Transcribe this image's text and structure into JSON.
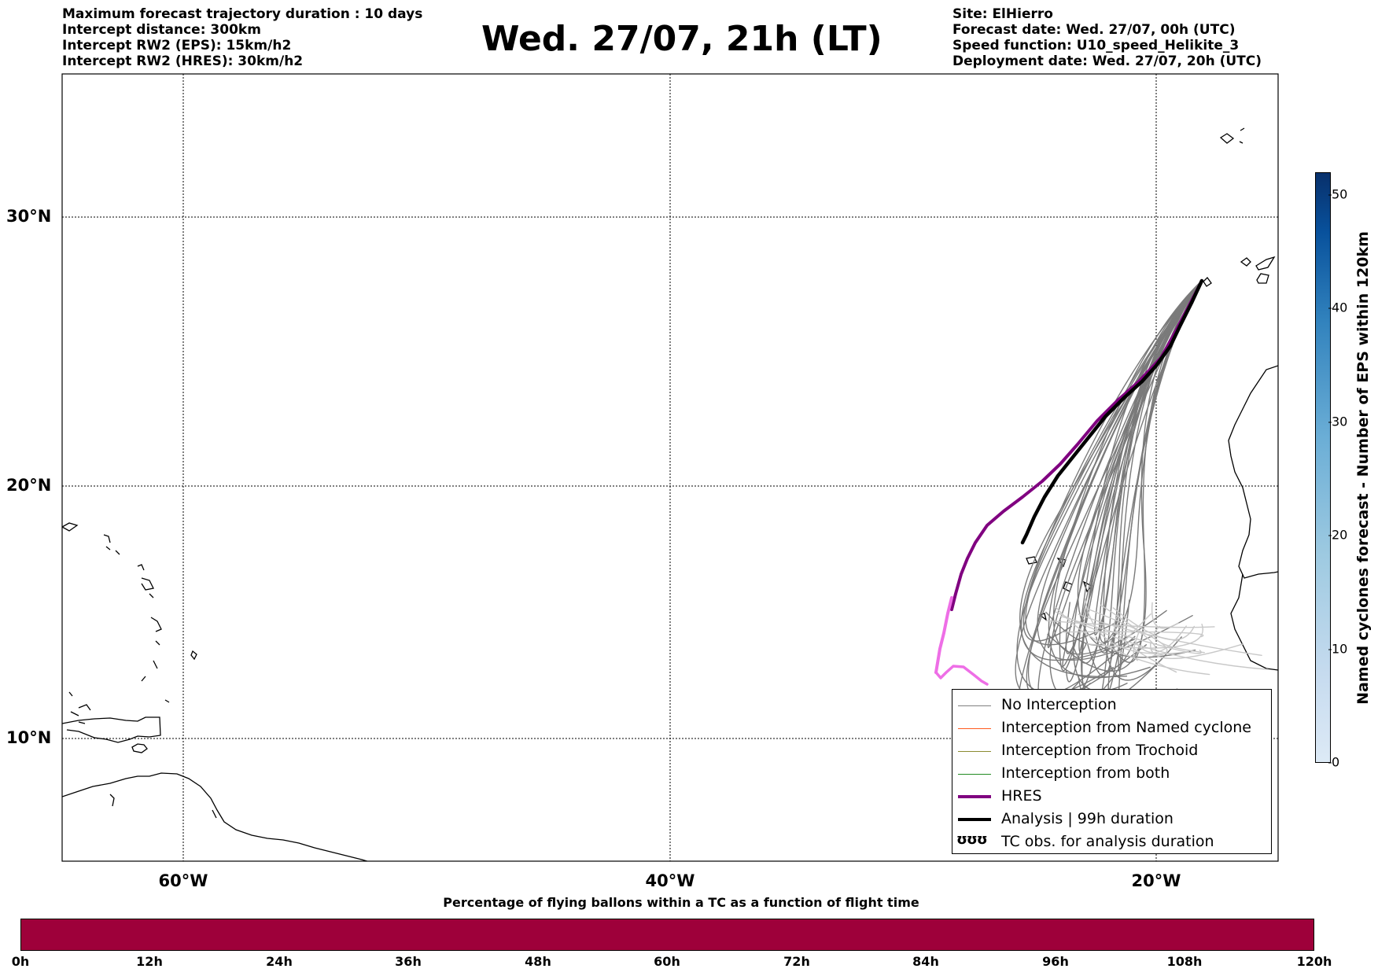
{
  "header_left": [
    "Maximum forecast trajectory duration : 10 days",
    "Intercept distance: 300km",
    "Intercept RW2 (EPS):  15km/h2",
    "Intercept RW2 (HRES): 30km/h2"
  ],
  "header_right": [
    "Site: ElHierro",
    "Forecast date: Wed. 27/07, 00h (UTC)",
    "Speed function: U10_speed_Helikite_3",
    "Deployment date: Wed. 27/07, 20h (UTC)"
  ],
  "title": "Wed. 27/07, 21h (LT)",
  "map": {
    "lon_range": [
      -65,
      15
    ],
    "lat_range": [
      4.6,
      34
    ],
    "lat_labels": [
      {
        "value": 30,
        "text": "30°N"
      },
      {
        "value": 20,
        "text": "20°N"
      },
      {
        "value": 10,
        "text": "10°N"
      }
    ],
    "lon_labels": [
      {
        "value": -60,
        "text": "60°W"
      },
      {
        "value": -40,
        "text": "40°W"
      },
      {
        "value": -20,
        "text": "20°W"
      }
    ]
  },
  "legend": {
    "items": [
      {
        "label": "No Interception",
        "color": "#808080",
        "width": 1
      },
      {
        "label": "Interception from Named cyclone",
        "color": "#ff5a1e",
        "width": 1
      },
      {
        "label": "Interception from Trochoid",
        "color": "#8c8c32",
        "width": 1
      },
      {
        "label": "Interception from both",
        "color": "#228b22",
        "width": 1
      },
      {
        "label": "HRES",
        "color": "#800080",
        "width": 4
      },
      {
        "label": "Analysis | 99h duration",
        "color": "#000000",
        "width": 4
      }
    ],
    "obs_label": "TC obs. for analysis duration",
    "obs_symbol": "ʊʊʊ"
  },
  "colorbar_vertical": {
    "label": "Named cyclones forecast - Number of EPS within 120km",
    "min": 0,
    "max": 52,
    "ticks": [
      0,
      10,
      20,
      30,
      40,
      50
    ]
  },
  "colorbar_horizontal": {
    "title": "Percentage of flying ballons within a TC as a function of flight time",
    "ticks": [
      "0h",
      "12h",
      "24h",
      "36h",
      "48h",
      "60h",
      "72h",
      "84h",
      "96h",
      "108h",
      "120h"
    ],
    "fill_color": "#9e003a"
  }
}
